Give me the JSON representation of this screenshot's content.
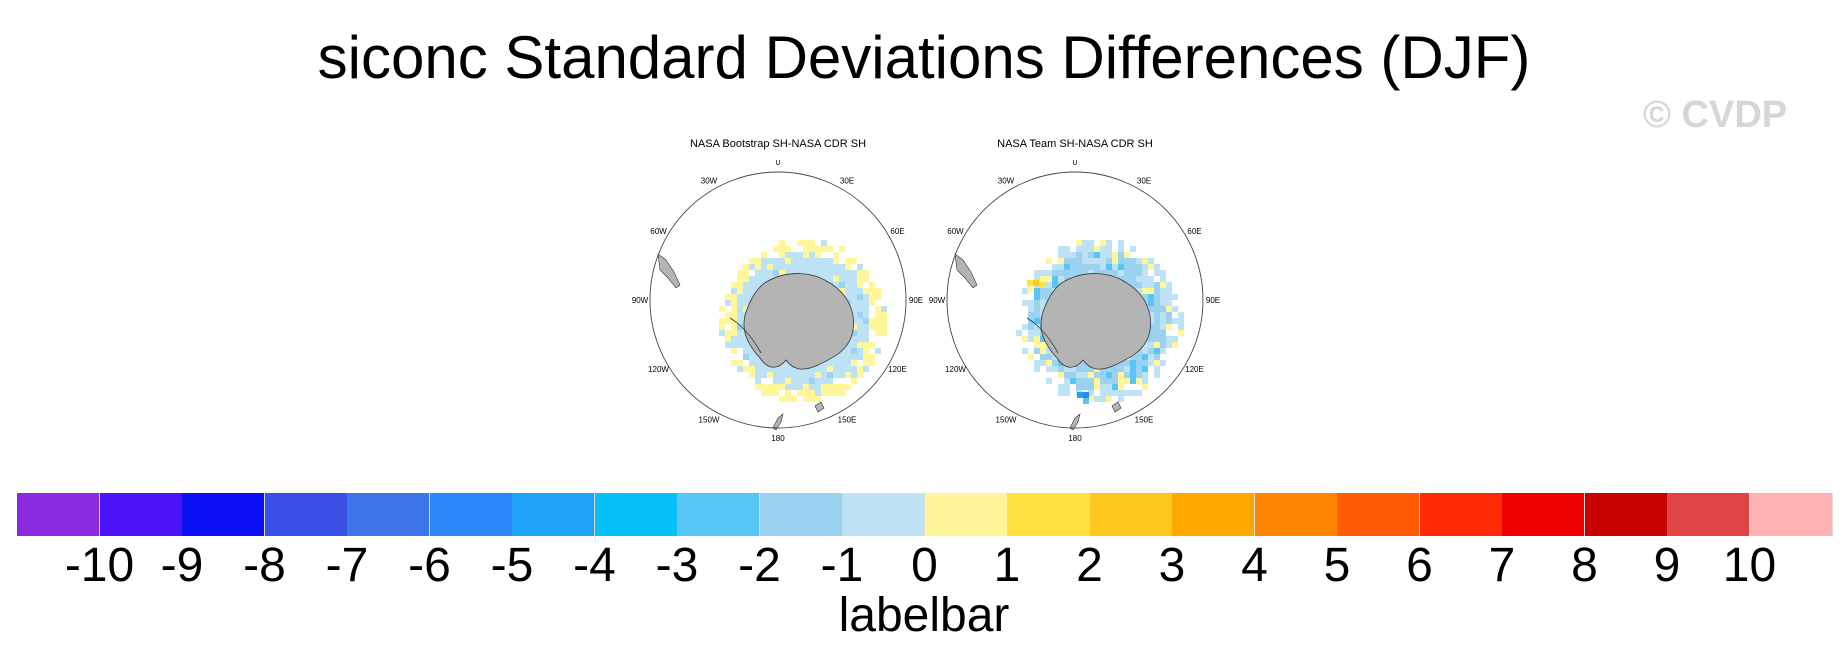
{
  "title": "siconc Standard Deviations Differences (DJF)",
  "watermark": "© CVDP",
  "panels": [
    {
      "title": "NASA Bootstrap SH-NASA CDR SH",
      "lon_labels": [
        "0",
        "30E",
        "60E",
        "90E",
        "120E",
        "150E",
        "180",
        "150W",
        "120W",
        "90W",
        "60W",
        "30W"
      ]
    },
    {
      "title": "NASA Team SH-NASA CDR SH",
      "lon_labels": [
        "0",
        "30E",
        "60E",
        "90E",
        "120E",
        "150E",
        "180",
        "150W",
        "120W",
        "90W",
        "60W",
        "30W"
      ]
    }
  ],
  "labelbar": {
    "label": "labelbar",
    "ticks": [
      "-10",
      "-9",
      "-8",
      "-7",
      "-6",
      "-5",
      "-4",
      "-3",
      "-2",
      "-1",
      "0",
      "1",
      "2",
      "3",
      "4",
      "5",
      "6",
      "7",
      "8",
      "9",
      "10"
    ],
    "colors": [
      "#8a2be2",
      "#4b13f7",
      "#0a10f2",
      "#3a4fe6",
      "#3e76ea",
      "#2b87f7",
      "#1ea2f7",
      "#06c0fa",
      "#57c6f5",
      "#9ad2ef",
      "#bde2f6",
      "#fff69a",
      "#ffe23f",
      "#ffc81e",
      "#ffa800",
      "#ff8505",
      "#ff5c05",
      "#ff2a06",
      "#ee0000",
      "#c80000",
      "#e04444",
      "#ffb3b3"
    ]
  }
}
